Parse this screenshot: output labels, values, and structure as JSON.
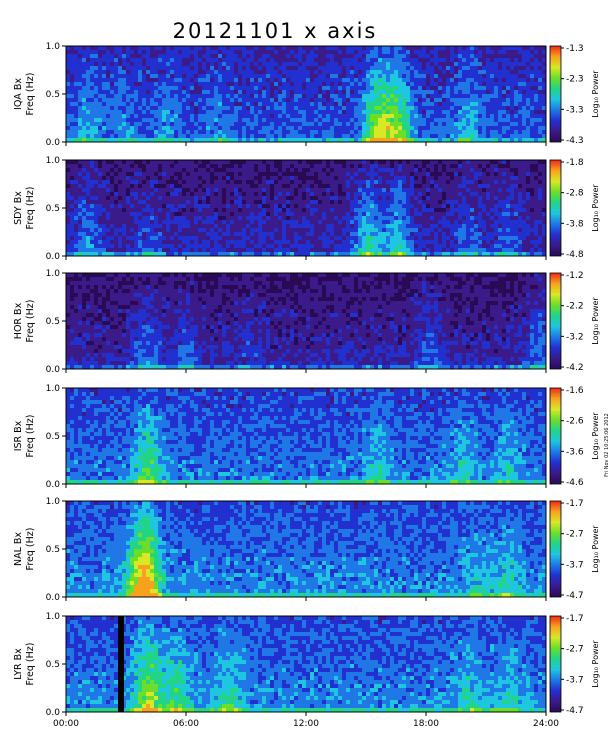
{
  "title": "20121101 x axis",
  "note": "Fri Nov 02 10:25:06 2012",
  "colorbar_colors": [
    "#2a0a55",
    "#3b1a8a",
    "#2230d0",
    "#1f78e6",
    "#1fc6e0",
    "#22d486",
    "#6cde2a",
    "#d8e826",
    "#f7a21c",
    "#ee2a1a"
  ],
  "chart_data": {
    "type": "heatmap",
    "panels": [
      {
        "name": "IQA Bx",
        "ylabel": "Freq (Hz)",
        "ylim": [
          0.0,
          1.0
        ],
        "cbar_label": "Log₁₀ Power",
        "cbar_ticks": [
          "-1.3",
          "-2.3",
          "-3.3",
          "-4.3"
        ],
        "cbar_range": [
          -4.3,
          -1.3
        ]
      },
      {
        "name": "SDY Bx",
        "ylabel": "Freq (Hz)",
        "ylim": [
          0.0,
          1.0
        ],
        "cbar_label": "Log₁₀ Power",
        "cbar_ticks": [
          "-1.8",
          "-2.8",
          "-3.8",
          "-4.8"
        ],
        "cbar_range": [
          -4.8,
          -1.8
        ]
      },
      {
        "name": "HOR Bx",
        "ylabel": "Freq (Hz)",
        "ylim": [
          0.0,
          1.0
        ],
        "cbar_label": "Log₁₀ Power",
        "cbar_ticks": [
          "-1.2",
          "-2.2",
          "-3.2",
          "-4.2"
        ],
        "cbar_range": [
          -4.2,
          -1.2
        ]
      },
      {
        "name": "ISR Bx",
        "ylabel": "Freq (Hz)",
        "ylim": [
          0.0,
          1.0
        ],
        "cbar_label": "Log₁₀ Power",
        "cbar_ticks": [
          "-1.6",
          "-2.6",
          "-3.6",
          "-4.6"
        ],
        "cbar_range": [
          -4.6,
          -1.6
        ]
      },
      {
        "name": "NAL Bx",
        "ylabel": "Freq (Hz)",
        "ylim": [
          0.0,
          1.0
        ],
        "cbar_label": "Log₁₀ Power",
        "cbar_ticks": [
          "-1.7",
          "-2.7",
          "-3.7",
          "-4.7"
        ],
        "cbar_range": [
          -4.7,
          -1.7
        ]
      },
      {
        "name": "LYR Bx",
        "ylabel": "Freq (Hz)",
        "ylim": [
          0.0,
          1.0
        ],
        "cbar_label": "Log₁₀ Power",
        "cbar_ticks": [
          "-1.7",
          "-2.7",
          "-3.7",
          "-4.7"
        ],
        "cbar_range": [
          -4.7,
          -1.7
        ]
      }
    ],
    "y_ticks": [
      "0.0",
      "0.5",
      "1.0"
    ],
    "x_ticks": [
      "00:00",
      "06:00",
      "12:00",
      "18:00",
      "24:00"
    ],
    "xlim_hours": [
      0,
      24
    ]
  }
}
